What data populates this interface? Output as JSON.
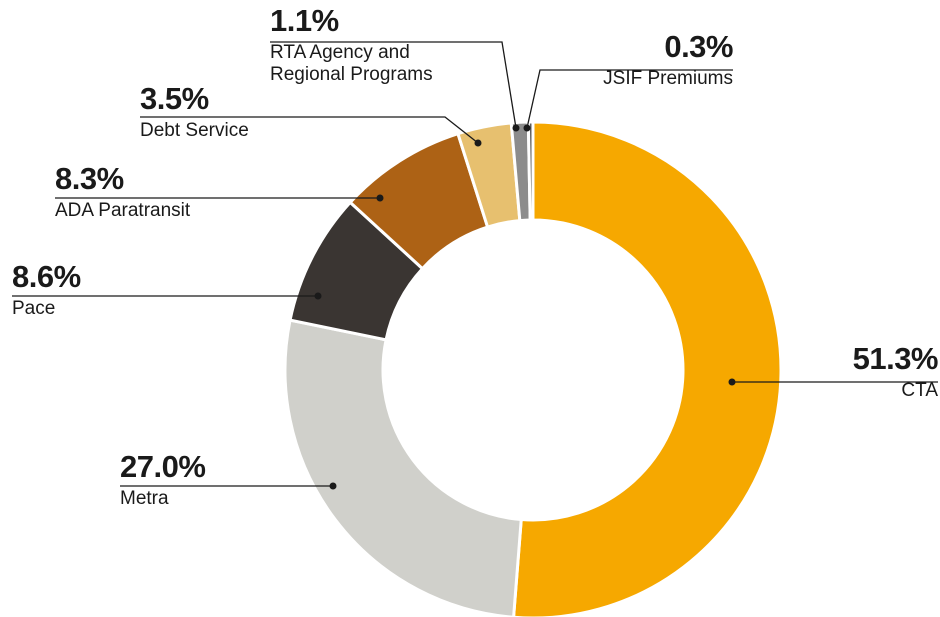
{
  "chart_data": {
    "type": "donut",
    "categories": [
      "CTA",
      "Metra",
      "Pace",
      "ADA Paratransit",
      "Debt Service",
      "RTA Agency and Regional Programs",
      "JSIF Premiums"
    ],
    "values": [
      51.3,
      27.0,
      8.6,
      8.3,
      3.5,
      1.1,
      0.3
    ],
    "value_labels": [
      "51.3%",
      "27.0%",
      "8.6%",
      "8.3%",
      "3.5%",
      "1.1%",
      "0.3%"
    ],
    "colors": [
      "#f6a800",
      "#d0d0cb",
      "#3a3532",
      "#ad6215",
      "#e7c06f",
      "#8c8c8c",
      "#5e5e5e"
    ]
  }
}
